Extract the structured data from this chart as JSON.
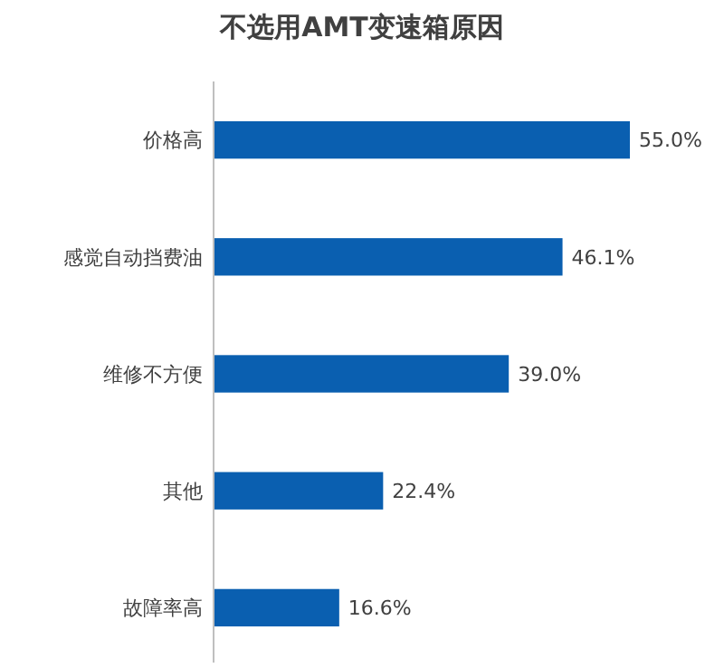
{
  "chart_data": {
    "type": "bar",
    "orientation": "horizontal",
    "title": "不选用AMT变速箱原因",
    "categories": [
      "价格高",
      "感觉自动挡费油",
      "维修不方便",
      "其他",
      "故障率高"
    ],
    "values": [
      55.0,
      46.1,
      39.0,
      22.4,
      16.6
    ],
    "value_labels": [
      "55.0%",
      "46.1%",
      "39.0%",
      "22.4%",
      "16.6%"
    ],
    "color": "#0a5fb0"
  }
}
